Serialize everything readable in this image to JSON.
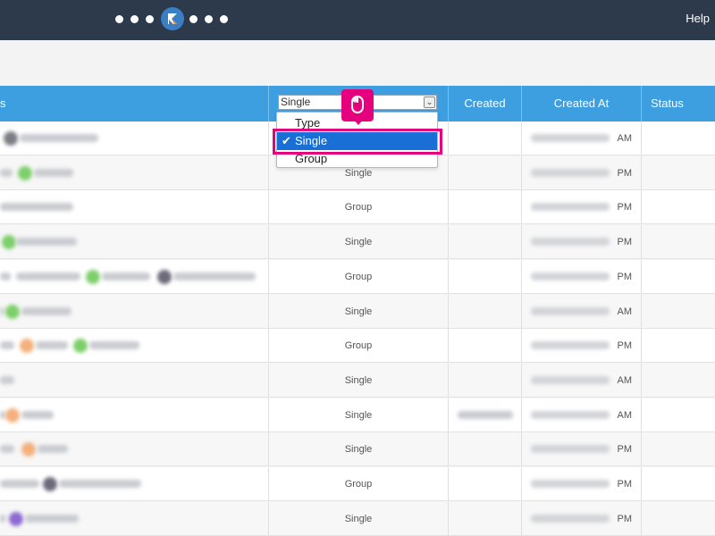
{
  "topbar": {
    "help_label": "Help",
    "dots_left": 3,
    "dots_right": 3
  },
  "table": {
    "columns": {
      "type_filter_value": "Single",
      "created": "Created",
      "created_at": "Created At",
      "status": "Status"
    },
    "rows": [
      {
        "type": "",
        "time": "AM"
      },
      {
        "type": "Single",
        "time": "PM"
      },
      {
        "type": "Group",
        "time": "PM"
      },
      {
        "type": "Single",
        "time": "PM"
      },
      {
        "type": "Group",
        "time": "PM"
      },
      {
        "type": "Single",
        "time": "AM"
      },
      {
        "type": "Group",
        "time": "PM"
      },
      {
        "type": "Single",
        "time": "AM"
      },
      {
        "type": "Single",
        "time": "AM"
      },
      {
        "type": "Single",
        "time": "PM"
      },
      {
        "type": "Group",
        "time": "PM"
      },
      {
        "type": "Single",
        "time": "PM"
      }
    ]
  },
  "dropdown": {
    "options": [
      {
        "label": "Type",
        "selected": false
      },
      {
        "label": "Single",
        "selected": true
      },
      {
        "label": "Group",
        "selected": false
      }
    ],
    "check_glyph": "✔"
  },
  "colors": {
    "accent": "#e5007e",
    "header": "#3d9ee0",
    "topbar": "#2d3a4c",
    "selected": "#1a6fd6"
  }
}
